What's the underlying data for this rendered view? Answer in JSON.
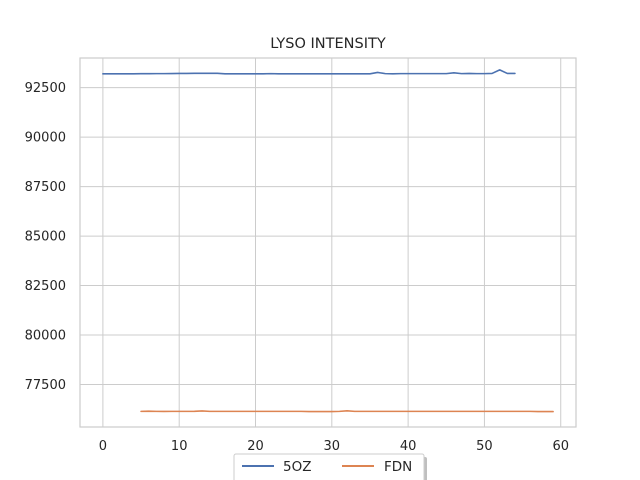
{
  "chart_data": {
    "type": "line",
    "title": "LYSO INTENSITY",
    "xlabel": "",
    "ylabel": "",
    "xlim": [
      -3,
      62
    ],
    "ylim": [
      75350,
      94000
    ],
    "xticks": [
      0,
      10,
      20,
      30,
      40,
      50,
      60
    ],
    "yticks": [
      77500,
      80000,
      82500,
      85000,
      87500,
      90000,
      92500
    ],
    "grid": true,
    "legend": "bottom-center",
    "series": [
      {
        "name": "5OZ",
        "color": "#4c72b0",
        "x": [
          0,
          1,
          2,
          3,
          4,
          5,
          6,
          7,
          8,
          9,
          10,
          11,
          12,
          13,
          14,
          15,
          16,
          17,
          18,
          19,
          20,
          21,
          22,
          23,
          24,
          25,
          26,
          27,
          28,
          29,
          30,
          31,
          32,
          33,
          34,
          35,
          36,
          37,
          38,
          39,
          40,
          41,
          42,
          43,
          44,
          45,
          46,
          47,
          48,
          49,
          50,
          51,
          52,
          53,
          54
        ],
        "values": [
          93200,
          93200,
          93200,
          93200,
          93200,
          93205,
          93205,
          93210,
          93210,
          93215,
          93220,
          93220,
          93225,
          93225,
          93225,
          93225,
          93200,
          93200,
          93200,
          93200,
          93200,
          93200,
          93210,
          93200,
          93200,
          93200,
          93200,
          93200,
          93200,
          93200,
          93200,
          93200,
          93200,
          93200,
          93200,
          93200,
          93270,
          93210,
          93200,
          93210,
          93210,
          93210,
          93210,
          93210,
          93210,
          93210,
          93250,
          93210,
          93220,
          93210,
          93210,
          93220,
          93400,
          93220,
          93220
        ]
      },
      {
        "name": "FDN",
        "color": "#dd8452",
        "x": [
          5,
          6,
          7,
          8,
          9,
          10,
          11,
          12,
          13,
          14,
          15,
          16,
          17,
          18,
          19,
          20,
          21,
          22,
          23,
          24,
          25,
          26,
          27,
          28,
          29,
          30,
          31,
          32,
          33,
          34,
          35,
          36,
          37,
          38,
          39,
          40,
          41,
          42,
          43,
          44,
          45,
          46,
          47,
          48,
          49,
          50,
          51,
          52,
          53,
          54,
          55,
          56,
          57,
          58,
          59
        ],
        "values": [
          76140,
          76150,
          76140,
          76135,
          76140,
          76140,
          76140,
          76145,
          76160,
          76140,
          76140,
          76140,
          76140,
          76140,
          76140,
          76140,
          76140,
          76140,
          76140,
          76140,
          76140,
          76140,
          76130,
          76130,
          76130,
          76130,
          76140,
          76170,
          76140,
          76140,
          76140,
          76140,
          76140,
          76140,
          76140,
          76140,
          76140,
          76140,
          76140,
          76140,
          76140,
          76140,
          76140,
          76140,
          76140,
          76140,
          76140,
          76140,
          76140,
          76140,
          76140,
          76140,
          76130,
          76130,
          76130
        ]
      }
    ]
  }
}
